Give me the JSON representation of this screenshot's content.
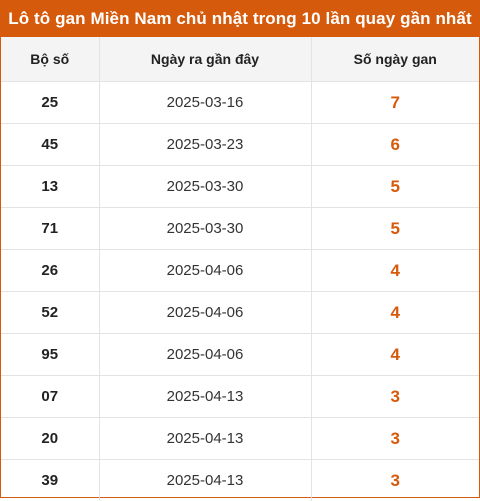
{
  "title": "Lô tô gan Miền Nam chủ nhật trong 10 lần quay gần nhất",
  "headers": [
    "Bộ số",
    "Ngày ra gần đây",
    "Số ngày gan"
  ],
  "accent_color": "#d65a0c",
  "rows": [
    {
      "number": "25",
      "date": "2025-03-16",
      "days": "7"
    },
    {
      "number": "45",
      "date": "2025-03-23",
      "days": "6"
    },
    {
      "number": "13",
      "date": "2025-03-30",
      "days": "5"
    },
    {
      "number": "71",
      "date": "2025-03-30",
      "days": "5"
    },
    {
      "number": "26",
      "date": "2025-04-06",
      "days": "4"
    },
    {
      "number": "52",
      "date": "2025-04-06",
      "days": "4"
    },
    {
      "number": "95",
      "date": "2025-04-06",
      "days": "4"
    },
    {
      "number": "07",
      "date": "2025-04-13",
      "days": "3"
    },
    {
      "number": "20",
      "date": "2025-04-13",
      "days": "3"
    },
    {
      "number": "39",
      "date": "2025-04-13",
      "days": "3"
    }
  ]
}
